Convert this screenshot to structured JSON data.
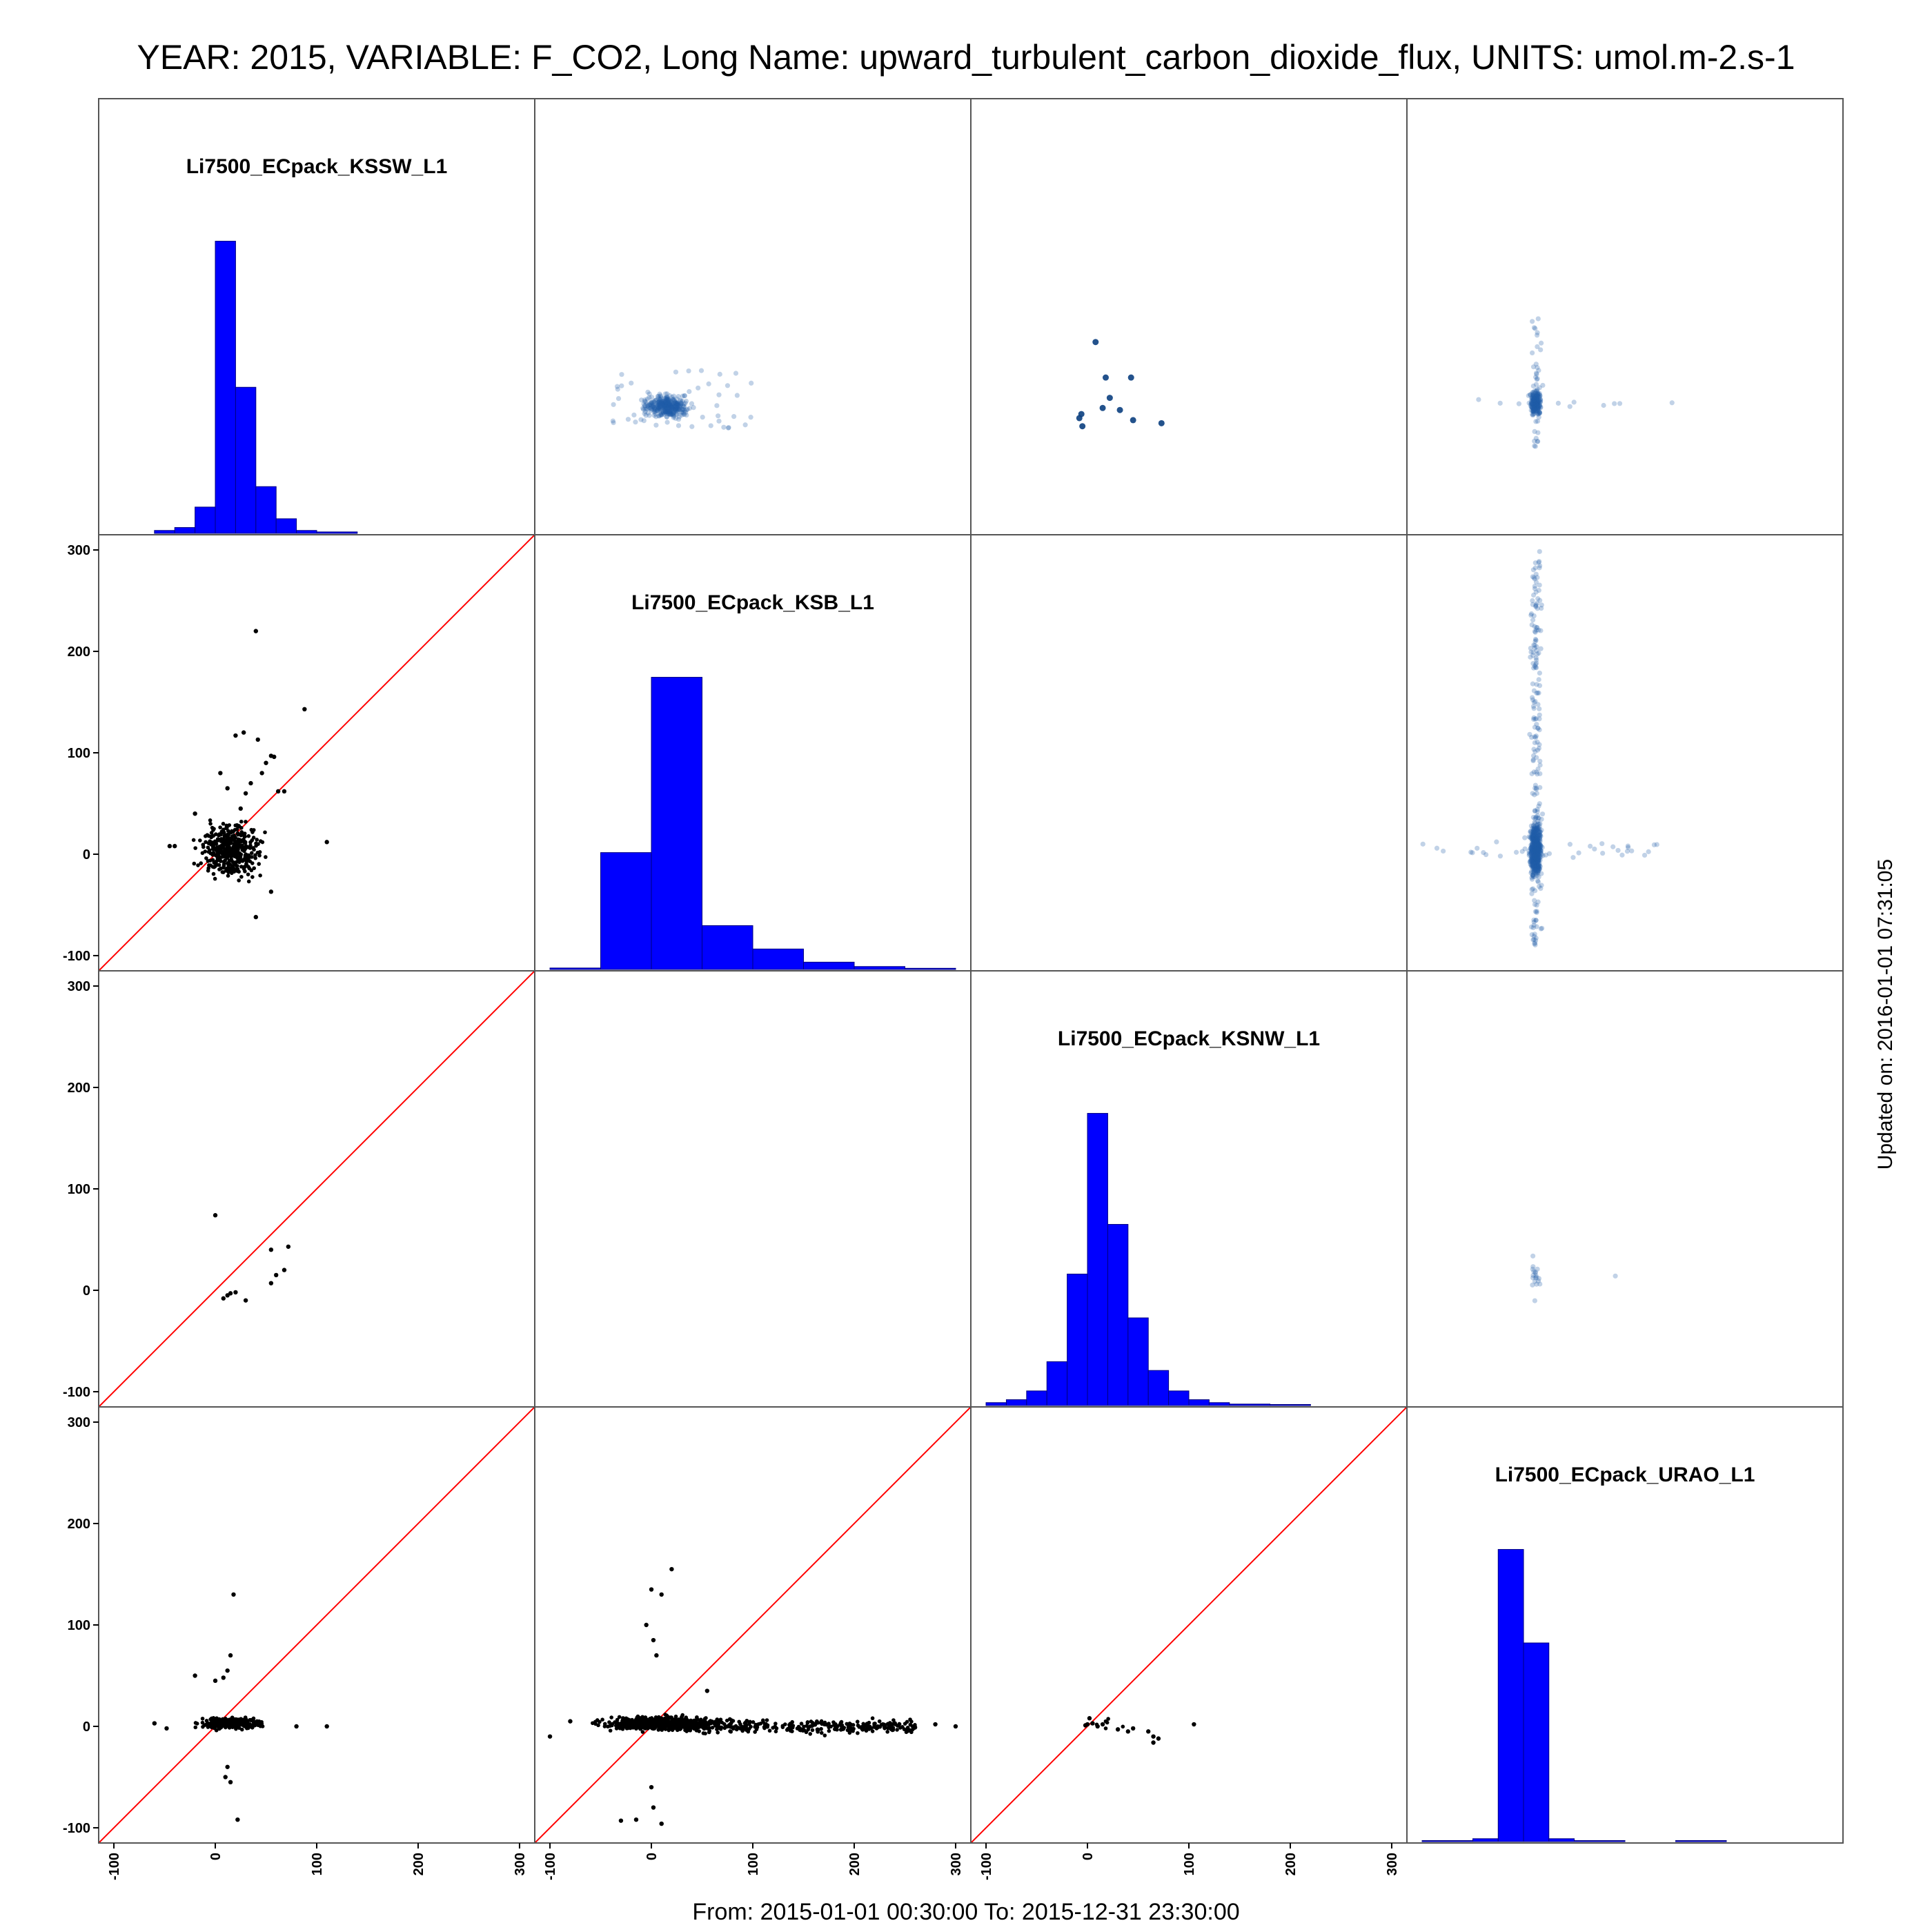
{
  "header": {
    "title": "YEAR: 2015, VARIABLE: F_CO2, Long Name: upward_turbulent_carbon_dioxide_flux, UNITS: umol.m-2.s-1"
  },
  "footer": {
    "range": "From: 2015-01-01 00:30:00 To: 2015-12-31 23:30:00"
  },
  "side": {
    "updated": "Updated on: 2016-01-01 07:31:05"
  },
  "colors": {
    "hist_fill": "#0000ff",
    "hist_edge": "#000080",
    "identity_line": "#ff0000",
    "scatter_points": "#000000",
    "density_points": "#1f5fa8",
    "frame": "#555555"
  },
  "chart_data": {
    "type": "scatter-matrix",
    "variables": [
      "Li7500_ECpack_KSSW_L1",
      "Li7500_ECpack_KSB_L1",
      "Li7500_ECpack_KSNW_L1",
      "Li7500_ECpack_URAO_L1"
    ],
    "axis_range": [
      -115,
      315
    ],
    "tick_values": [
      -100,
      0,
      100,
      200,
      300
    ],
    "tick_labels": [
      "-100",
      "0",
      "100",
      "200",
      "300"
    ],
    "grid": false,
    "identity_line": true,
    "histograms": [
      {
        "variable": "Li7500_ECpack_KSSW_L1",
        "bin_width": 20,
        "bins": [
          [
            -60,
            -40,
            0.01
          ],
          [
            -40,
            -20,
            0.02
          ],
          [
            -20,
            0,
            0.09
          ],
          [
            0,
            20,
            1.0
          ],
          [
            20,
            40,
            0.5
          ],
          [
            40,
            60,
            0.16
          ],
          [
            60,
            80,
            0.05
          ],
          [
            80,
            100,
            0.01
          ],
          [
            100,
            140,
            0.005
          ]
        ]
      },
      {
        "variable": "Li7500_ECpack_KSB_L1",
        "bin_width": 50,
        "bins": [
          [
            -100,
            -50,
            0.005
          ],
          [
            -50,
            0,
            0.4
          ],
          [
            0,
            50,
            1.0
          ],
          [
            50,
            100,
            0.15
          ],
          [
            100,
            150,
            0.07
          ],
          [
            150,
            200,
            0.025
          ],
          [
            200,
            250,
            0.01
          ],
          [
            250,
            300,
            0.004
          ]
        ]
      },
      {
        "variable": "Li7500_ECpack_KSNW_L1",
        "bin_width": 20,
        "bins": [
          [
            -100,
            -80,
            0.01
          ],
          [
            -80,
            -60,
            0.02
          ],
          [
            -60,
            -40,
            0.05
          ],
          [
            -40,
            -20,
            0.15
          ],
          [
            -20,
            0,
            0.45
          ],
          [
            0,
            20,
            1.0
          ],
          [
            20,
            40,
            0.62
          ],
          [
            40,
            60,
            0.3
          ],
          [
            60,
            80,
            0.12
          ],
          [
            80,
            100,
            0.05
          ],
          [
            100,
            120,
            0.02
          ],
          [
            120,
            140,
            0.01
          ],
          [
            140,
            180,
            0.005
          ],
          [
            180,
            220,
            0.002
          ]
        ]
      },
      {
        "variable": "Li7500_ECpack_URAO_L1",
        "bin_width": 25,
        "bins": [
          [
            -100,
            -50,
            0.003
          ],
          [
            -50,
            -25,
            0.01
          ],
          [
            -25,
            0,
            1.0
          ],
          [
            0,
            25,
            0.68
          ],
          [
            25,
            50,
            0.01
          ],
          [
            50,
            100,
            0.003
          ],
          [
            150,
            200,
            0.002
          ]
        ]
      }
    ],
    "scatter_panels": [
      {
        "x": "Li7500_ECpack_KSSW_L1",
        "y": "Li7500_ECpack_KSB_L1",
        "count_hint": 420,
        "points": [
          [
            40,
            220
          ],
          [
            88,
            143
          ],
          [
            28,
            120
          ],
          [
            20,
            117
          ],
          [
            42,
            113
          ],
          [
            55,
            97
          ],
          [
            58,
            96
          ],
          [
            50,
            90
          ],
          [
            46,
            80
          ],
          [
            62,
            62
          ],
          [
            68,
            62
          ],
          [
            5,
            80
          ],
          [
            12,
            65
          ],
          [
            -20,
            40
          ],
          [
            -40,
            8
          ],
          [
            -45,
            8
          ],
          [
            110,
            12
          ],
          [
            40,
            -62
          ],
          [
            55,
            -37
          ],
          [
            25,
            45
          ],
          [
            30,
            60
          ],
          [
            35,
            70
          ]
        ]
      },
      {
        "x": "Li7500_ECpack_KSSW_L1",
        "y": "Li7500_ECpack_KSNW_L1",
        "count_hint": 11,
        "points": [
          [
            0,
            74
          ],
          [
            72,
            43
          ],
          [
            55,
            40
          ],
          [
            68,
            20
          ],
          [
            60,
            15
          ],
          [
            55,
            7
          ],
          [
            30,
            -10
          ],
          [
            20,
            -2
          ],
          [
            12,
            -5
          ],
          [
            8,
            -8
          ],
          [
            15,
            -3
          ]
        ]
      },
      {
        "x": "Li7500_ECpack_KSSW_L1",
        "y": "Li7500_ECpack_URAO_L1",
        "count_hint": 260,
        "points": [
          [
            18,
            130
          ],
          [
            -20,
            50
          ],
          [
            15,
            70
          ],
          [
            12,
            55
          ],
          [
            0,
            45
          ],
          [
            8,
            48
          ],
          [
            10,
            -50
          ],
          [
            15,
            -55
          ],
          [
            12,
            -40
          ],
          [
            22,
            -92
          ],
          [
            -60,
            3
          ],
          [
            -48,
            -2
          ],
          [
            110,
            0
          ],
          [
            80,
            0
          ]
        ]
      },
      {
        "x": "Li7500_ECpack_KSB_L1",
        "y": "Li7500_ECpack_URAO_L1",
        "count_hint": 900,
        "points": [
          [
            20,
            155
          ],
          [
            0,
            135
          ],
          [
            10,
            130
          ],
          [
            -5,
            100
          ],
          [
            2,
            85
          ],
          [
            5,
            70
          ],
          [
            55,
            35
          ],
          [
            0,
            -60
          ],
          [
            2,
            -80
          ],
          [
            -30,
            -93
          ],
          [
            -15,
            -92
          ],
          [
            10,
            -96
          ],
          [
            300,
            0
          ],
          [
            280,
            2
          ],
          [
            260,
            -1
          ],
          [
            240,
            3
          ],
          [
            -100,
            -10
          ],
          [
            -80,
            5
          ]
        ]
      },
      {
        "x": "Li7500_ECpack_KSNW_L1",
        "y": "Li7500_ECpack_URAO_L1",
        "count_hint": 20,
        "points": [
          [
            0,
            2
          ],
          [
            2,
            8
          ],
          [
            5,
            3
          ],
          [
            10,
            0
          ],
          [
            15,
            2
          ],
          [
            30,
            -3
          ],
          [
            40,
            -5
          ],
          [
            45,
            -2
          ],
          [
            60,
            -5
          ],
          [
            65,
            -10
          ],
          [
            70,
            -12
          ],
          [
            65,
            -16
          ],
          [
            105,
            2
          ],
          [
            -2,
            1
          ]
        ]
      }
    ],
    "density_panels": [
      {
        "x": "Li7500_ECpack_KSB_L1",
        "y": "Li7500_ECpack_KSSW_L1",
        "count_hint": 420
      },
      {
        "x": "Li7500_ECpack_KSNW_L1",
        "y": "Li7500_ECpack_KSSW_L1",
        "count_hint": 11,
        "points": [
          [
            8,
            75
          ],
          [
            18,
            40
          ],
          [
            43,
            40
          ],
          [
            22,
            20
          ],
          [
            15,
            10
          ],
          [
            32,
            8
          ],
          [
            45,
            -2
          ],
          [
            73,
            -5
          ],
          [
            -5,
            -8
          ],
          [
            -8,
            0
          ],
          [
            -6,
            4
          ]
        ]
      },
      {
        "x": "Li7500_ECpack_URAO_L1",
        "y": "Li7500_ECpack_KSSW_L1",
        "count_hint": 260
      },
      {
        "x": "Li7500_ECpack_URAO_L1",
        "y": "Li7500_ECpack_KSB_L1",
        "count_hint": 900
      },
      {
        "x": "Li7500_ECpack_URAO_L1",
        "y": "Li7500_ECpack_KSNW_L1",
        "count_hint": 20
      }
    ]
  }
}
